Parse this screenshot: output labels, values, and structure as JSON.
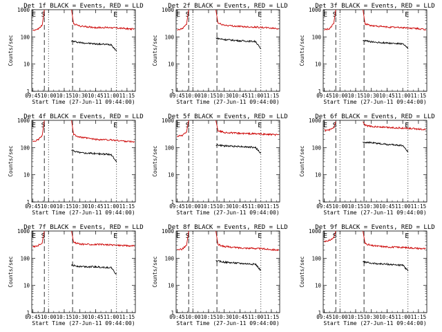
{
  "page": {
    "background": "#ffffff",
    "colors": {
      "events": "#000000",
      "lld": "#cc0000",
      "axes": "#000000"
    }
  },
  "chart_data": [
    {
      "type": "line",
      "title": "Det 1f BLACK = Events, RED = LLD",
      "xlabel": "Start Time (27-Jun-11 09:44:00)",
      "ylabel": "Counts/sec",
      "xlim": [
        "09:44",
        "11:23"
      ],
      "ylim": [
        1,
        1000
      ],
      "y_scale": "log",
      "grid": false,
      "x_ticks": [
        "09:45",
        "10:00",
        "10:15",
        "10:30",
        "10:45",
        "11:00",
        "11:15"
      ],
      "y_ticks": [
        "1",
        "10",
        "100",
        "1000"
      ],
      "markers": [
        {
          "label": "E",
          "time": "09:46"
        },
        {
          "label": "S",
          "time": "09:55"
        },
        {
          "label": "E",
          "time": "11:04"
        }
      ],
      "dashed_lines": [
        "09:56",
        "10:23"
      ],
      "dotted_lines": [
        "10:00",
        "11:05"
      ],
      "series": [
        {
          "name": "Events",
          "color": "#000000",
          "x": [
            "10:22",
            "10:30",
            "10:45",
            "11:00",
            "11:05"
          ],
          "values": [
            70,
            62,
            55,
            52,
            30
          ]
        },
        {
          "name": "LLD",
          "color": "#cc0000",
          "x": [
            "09:45",
            "09:50",
            "09:54",
            "09:56",
            "10:22",
            "10:24",
            "10:30",
            "10:45",
            "11:00",
            "11:15",
            "11:22"
          ],
          "values": [
            175,
            190,
            270,
            1000,
            1000,
            300,
            250,
            220,
            220,
            200,
            190
          ]
        }
      ]
    },
    {
      "type": "line",
      "title": "Det 2f BLACK = Events, RED = LLD",
      "xlabel": "Start Time (27-Jun-11 09:44:00)",
      "ylabel": "Counts/sec",
      "xlim": [
        "09:44",
        "11:23"
      ],
      "ylim": [
        1,
        1000
      ],
      "y_scale": "log",
      "grid": false,
      "x_ticks": [
        "09:45",
        "10:00",
        "10:15",
        "10:30",
        "10:45",
        "11:00",
        "11:15"
      ],
      "y_ticks": [
        "1",
        "10",
        "100",
        "1000"
      ],
      "markers": [
        {
          "label": "E",
          "time": "09:46"
        },
        {
          "label": "S",
          "time": "09:55"
        },
        {
          "label": "E",
          "time": "11:04"
        }
      ],
      "dashed_lines": [
        "09:56",
        "10:23"
      ],
      "dotted_lines": [
        "10:00",
        "11:05"
      ],
      "series": [
        {
          "name": "Events",
          "color": "#000000",
          "x": [
            "10:22",
            "10:30",
            "10:45",
            "11:00",
            "11:05"
          ],
          "values": [
            90,
            80,
            72,
            68,
            35
          ]
        },
        {
          "name": "LLD",
          "color": "#cc0000",
          "x": [
            "09:45",
            "09:50",
            "09:54",
            "09:56",
            "10:22",
            "10:24",
            "10:30",
            "10:45",
            "11:00",
            "11:15",
            "11:22"
          ],
          "values": [
            175,
            200,
            300,
            1000,
            1000,
            320,
            270,
            240,
            230,
            210,
            200
          ]
        }
      ]
    },
    {
      "type": "line",
      "title": "Det 3f BLACK = Events, RED = LLD",
      "xlabel": "Start Time (27-Jun-11 09:44:00)",
      "ylabel": "Counts/sec",
      "xlim": [
        "09:44",
        "11:23"
      ],
      "ylim": [
        1,
        1000
      ],
      "y_scale": "log",
      "grid": false,
      "x_ticks": [
        "09:45",
        "10:00",
        "10:15",
        "10:30",
        "10:45",
        "11:00",
        "11:15"
      ],
      "y_ticks": [
        "1",
        "10",
        "100",
        "1000"
      ],
      "markers": [
        {
          "label": "E",
          "time": "09:46"
        },
        {
          "label": "S",
          "time": "09:55"
        },
        {
          "label": "E",
          "time": "11:04"
        }
      ],
      "dashed_lines": [
        "09:56",
        "10:23"
      ],
      "dotted_lines": [
        "10:00",
        "11:05"
      ],
      "series": [
        {
          "name": "Events",
          "color": "#000000",
          "x": [
            "10:22",
            "10:30",
            "10:45",
            "11:00",
            "11:05"
          ],
          "values": [
            75,
            65,
            60,
            55,
            38
          ]
        },
        {
          "name": "LLD",
          "color": "#cc0000",
          "x": [
            "09:45",
            "09:50",
            "09:54",
            "09:56",
            "10:22",
            "10:24",
            "10:30",
            "10:45",
            "11:00",
            "11:15",
            "11:22"
          ],
          "values": [
            180,
            200,
            300,
            1000,
            1000,
            300,
            260,
            230,
            220,
            200,
            180
          ]
        }
      ]
    },
    {
      "type": "line",
      "title": "Det 4f BLACK = Events, RED = LLD",
      "xlabel": "Start Time (27-Jun-11 09:44:00)",
      "ylabel": "Counts/sec",
      "xlim": [
        "09:44",
        "11:23"
      ],
      "ylim": [
        1,
        1000
      ],
      "y_scale": "log",
      "grid": false,
      "x_ticks": [
        "09:45",
        "10:00",
        "10:15",
        "10:30",
        "10:45",
        "11:00",
        "11:15"
      ],
      "y_ticks": [
        "1",
        "10",
        "100",
        "1000"
      ],
      "markers": [
        {
          "label": "E",
          "time": "09:46"
        },
        {
          "label": "S",
          "time": "09:55"
        },
        {
          "label": "E",
          "time": "11:04"
        }
      ],
      "dashed_lines": [
        "09:56",
        "10:23"
      ],
      "dotted_lines": [
        "10:00",
        "11:05"
      ],
      "series": [
        {
          "name": "Events",
          "color": "#000000",
          "x": [
            "10:22",
            "10:30",
            "10:45",
            "11:00",
            "11:05"
          ],
          "values": [
            80,
            65,
            60,
            55,
            30
          ]
        },
        {
          "name": "LLD",
          "color": "#cc0000",
          "x": [
            "09:45",
            "09:50",
            "09:54",
            "09:56",
            "10:22",
            "10:24",
            "10:30",
            "10:45",
            "11:00",
            "11:15",
            "11:22"
          ],
          "values": [
            170,
            190,
            280,
            1000,
            1000,
            300,
            240,
            200,
            190,
            170,
            160
          ]
        }
      ]
    },
    {
      "type": "line",
      "title": "Det 5f BLACK = Events, RED = LLD",
      "xlabel": "Start Time (27-Jun-11 09:44:00)",
      "ylabel": "Counts/sec",
      "xlim": [
        "09:44",
        "11:23"
      ],
      "ylim": [
        1,
        1000
      ],
      "y_scale": "log",
      "grid": false,
      "x_ticks": [
        "09:45",
        "10:00",
        "10:15",
        "10:30",
        "10:45",
        "11:00",
        "11:15"
      ],
      "y_ticks": [
        "1",
        "10",
        "100",
        "1000"
      ],
      "markers": [
        {
          "label": "E",
          "time": "09:46"
        },
        {
          "label": "S",
          "time": "09:55"
        },
        {
          "label": "E",
          "time": "11:04"
        }
      ],
      "dashed_lines": [
        "09:56",
        "10:23"
      ],
      "dotted_lines": [
        "10:00",
        "11:05"
      ],
      "series": [
        {
          "name": "Events",
          "color": "#000000",
          "x": [
            "10:22",
            "10:30",
            "10:45",
            "11:00",
            "11:05"
          ],
          "values": [
            125,
            115,
            110,
            100,
            60
          ]
        },
        {
          "name": "LLD",
          "color": "#cc0000",
          "x": [
            "09:45",
            "09:50",
            "09:54",
            "09:56",
            "10:22",
            "10:24",
            "10:30",
            "10:45",
            "11:00",
            "11:15",
            "11:22"
          ],
          "values": [
            260,
            280,
            380,
            1000,
            1000,
            420,
            360,
            330,
            320,
            300,
            290
          ]
        }
      ]
    },
    {
      "type": "line",
      "title": "Det 6f BLACK = Events, RED = LLD",
      "xlabel": "Start Time (27-Jun-11 09:44:00)",
      "ylabel": "Counts/sec",
      "xlim": [
        "09:44",
        "11:23"
      ],
      "ylim": [
        1,
        1000
      ],
      "y_scale": "log",
      "grid": false,
      "x_ticks": [
        "09:45",
        "10:00",
        "10:15",
        "10:30",
        "10:45",
        "11:00",
        "11:15"
      ],
      "y_ticks": [
        "1",
        "10",
        "100",
        "1000"
      ],
      "markers": [
        {
          "label": "E",
          "time": "09:46"
        },
        {
          "label": "S",
          "time": "09:55"
        },
        {
          "label": "E",
          "time": "11:04"
        }
      ],
      "dashed_lines": [
        "09:56",
        "10:23"
      ],
      "dotted_lines": [
        "10:00",
        "11:05"
      ],
      "series": [
        {
          "name": "Events",
          "color": "#000000",
          "x": [
            "10:22",
            "10:30",
            "10:45",
            "11:00",
            "11:05"
          ],
          "values": [
            160,
            150,
            130,
            120,
            70
          ]
        },
        {
          "name": "LLD",
          "color": "#cc0000",
          "x": [
            "09:45",
            "09:50",
            "09:54",
            "09:56",
            "10:22",
            "10:24",
            "10:30",
            "10:45",
            "11:00",
            "11:15",
            "11:22"
          ],
          "values": [
            420,
            440,
            520,
            900,
            900,
            650,
            600,
            550,
            520,
            480,
            460
          ]
        }
      ]
    },
    {
      "type": "line",
      "title": "Det 7f BLACK = Events, RED = LLD",
      "xlabel": "Start Time (27-Jun-11 09:44:00)",
      "ylabel": "Counts/sec",
      "xlim": [
        "09:44",
        "11:23"
      ],
      "ylim": [
        1,
        1000
      ],
      "y_scale": "log",
      "grid": false,
      "x_ticks": [
        "09:45",
        "10:00",
        "10:15",
        "10:30",
        "10:45",
        "11:00",
        "11:15"
      ],
      "y_ticks": [
        "1",
        "10",
        "100",
        "1000"
      ],
      "markers": [
        {
          "label": "E",
          "time": "09:46"
        },
        {
          "label": "S",
          "time": "09:55"
        },
        {
          "label": "E",
          "time": "11:04"
        }
      ],
      "dashed_lines": [
        "09:56",
        "10:23"
      ],
      "dotted_lines": [
        "10:00",
        "11:05"
      ],
      "series": [
        {
          "name": "Events",
          "color": "#000000",
          "x": [
            "10:22",
            "10:30",
            "10:45",
            "11:00",
            "11:05"
          ],
          "values": [
            55,
            50,
            48,
            45,
            25
          ]
        },
        {
          "name": "LLD",
          "color": "#cc0000",
          "x": [
            "09:45",
            "09:50",
            "09:54",
            "09:56",
            "10:22",
            "10:24",
            "10:30",
            "10:45",
            "11:00",
            "11:15",
            "11:22"
          ],
          "values": [
            260,
            290,
            380,
            1000,
            1000,
            380,
            330,
            320,
            310,
            290,
            280
          ]
        }
      ]
    },
    {
      "type": "line",
      "title": "Det 8f BLACK = Events, RED = LLD",
      "xlabel": "Start Time (27-Jun-11 09:44:00)",
      "ylabel": "Counts/sec",
      "xlim": [
        "09:44",
        "11:23"
      ],
      "ylim": [
        1,
        1000
      ],
      "y_scale": "log",
      "grid": false,
      "x_ticks": [
        "09:45",
        "10:00",
        "10:15",
        "10:30",
        "10:45",
        "11:00",
        "11:15"
      ],
      "y_ticks": [
        "1",
        "10",
        "100",
        "1000"
      ],
      "markers": [
        {
          "label": "E",
          "time": "09:46"
        },
        {
          "label": "S",
          "time": "09:55"
        },
        {
          "label": "E",
          "time": "11:04"
        }
      ],
      "dashed_lines": [
        "09:56",
        "10:23"
      ],
      "dotted_lines": [
        "10:00",
        "11:05"
      ],
      "series": [
        {
          "name": "Events",
          "color": "#000000",
          "x": [
            "10:22",
            "10:30",
            "10:45",
            "11:00",
            "11:05"
          ],
          "values": [
            80,
            72,
            65,
            60,
            35
          ]
        },
        {
          "name": "LLD",
          "color": "#cc0000",
          "x": [
            "09:45",
            "09:50",
            "09:54",
            "09:56",
            "10:22",
            "10:24",
            "10:30",
            "10:45",
            "11:00",
            "11:15",
            "11:22"
          ],
          "values": [
            200,
            220,
            300,
            1000,
            1000,
            320,
            270,
            240,
            230,
            210,
            200
          ]
        }
      ]
    },
    {
      "type": "line",
      "title": "Det 9f BLACK = Events, RED = LLD",
      "xlabel": "Start Time (27-Jun-11 09:44:00)",
      "ylabel": "Counts/sec",
      "xlim": [
        "09:44",
        "11:23"
      ],
      "ylim": [
        1,
        1000
      ],
      "y_scale": "log",
      "grid": false,
      "x_ticks": [
        "09:45",
        "10:00",
        "10:15",
        "10:30",
        "10:45",
        "11:00",
        "11:15"
      ],
      "y_ticks": [
        "1",
        "10",
        "100",
        "1000"
      ],
      "markers": [
        {
          "label": "E",
          "time": "09:46"
        },
        {
          "label": "S",
          "time": "09:55"
        },
        {
          "label": "E",
          "time": "11:04"
        }
      ],
      "dashed_lines": [
        "09:56",
        "10:23"
      ],
      "dotted_lines": [
        "10:00",
        "11:05"
      ],
      "series": [
        {
          "name": "Events",
          "color": "#000000",
          "x": [
            "10:22",
            "10:30",
            "10:45",
            "11:00",
            "11:05"
          ],
          "values": [
            75,
            65,
            60,
            55,
            35
          ]
        },
        {
          "name": "LLD",
          "color": "#cc0000",
          "x": [
            "09:45",
            "09:50",
            "09:54",
            "09:56",
            "10:22",
            "10:24",
            "10:30",
            "10:45",
            "11:00",
            "11:15",
            "11:22"
          ],
          "values": [
            420,
            450,
            560,
            1000,
            1000,
            350,
            290,
            260,
            250,
            230,
            220
          ]
        }
      ]
    }
  ]
}
